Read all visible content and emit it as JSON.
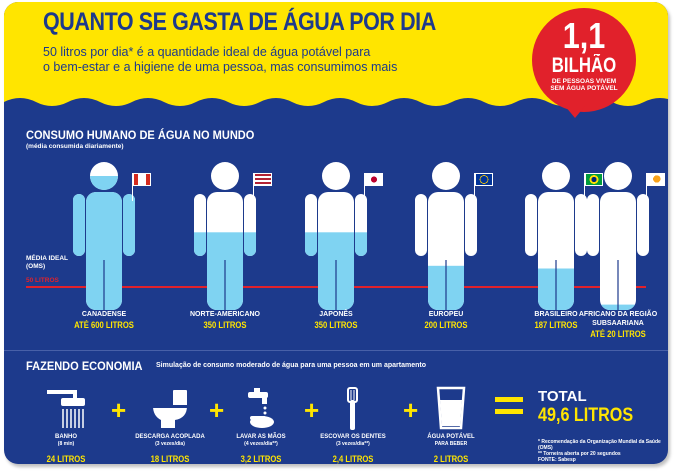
{
  "header": {
    "title": "QUANTO SE GASTA DE ÁGUA POR DIA",
    "intro_line1": "50 litros por dia* é a quantidade ideal de água potável para",
    "intro_line2": "o bem-estar e a higiene de uma pessoa, mas consumimos mais"
  },
  "badge": {
    "number": "1,1",
    "word": "BILHÃO",
    "sub_line1": "DE PESSOAS VIVEM",
    "sub_line2": "SEM ÁGUA POTÁVEL"
  },
  "world": {
    "title": "CONSUMO HUMANO DE ÁGUA NO MUNDO",
    "subtitle": "(média consumida diariamente)",
    "ideal_label_line1": "MÉDIA IDEAL",
    "ideal_label_line2": "(OMS)",
    "ideal_value": "50 LITROS",
    "countries": [
      {
        "name": "CANADENSE",
        "name2": "",
        "value": "ATÉ 600 LITROS",
        "fill": 1.0,
        "flag": "flag-canada-icon"
      },
      {
        "name": "NORTE-AMERICANO",
        "name2": "",
        "value": "350 LITROS",
        "fill": 0.58,
        "flag": "flag-usa-icon"
      },
      {
        "name": "JAPONÊS",
        "name2": "",
        "value": "350 LITROS",
        "fill": 0.58,
        "flag": "flag-japan-icon"
      },
      {
        "name": "EUROPEU",
        "name2": "",
        "value": "200 LITROS",
        "fill": 0.33,
        "flag": "flag-eu-icon"
      },
      {
        "name": "BRASILEIRO",
        "name2": "",
        "value": "187 LITROS",
        "fill": 0.31,
        "flag": "flag-brazil-icon"
      },
      {
        "name": "AFRICANO DA REGIÃO",
        "name2": "SUBSAARIANA",
        "value": "ATÉ 20 LITROS",
        "fill": 0.04,
        "flag": "flag-africa-icon"
      }
    ]
  },
  "economy": {
    "title": "FAZENDO ECONOMIA",
    "description": "Simulação de consumo moderado de água para uma pessoa em um apartamento",
    "items": [
      {
        "name": "BANHO",
        "sub": "(8 min)",
        "value": "24 LITROS",
        "icon": "shower-icon"
      },
      {
        "name": "DESCARGA ACOPLADA",
        "sub": "(3 vezes/dia)",
        "value": "18 LITROS",
        "icon": "toilet-icon"
      },
      {
        "name": "LAVAR AS MÃOS",
        "sub": "(4 vezes/dia**)",
        "value": "3,2 LITROS",
        "icon": "hand-wash-icon"
      },
      {
        "name": "ESCOVAR OS DENTES",
        "sub": "(3 vezes/dia**)",
        "value": "2,4 LITROS",
        "icon": "toothbrush-icon"
      },
      {
        "name": "ÁGUA POTÁVEL",
        "sub": "PARA BEBER",
        "value": "2 LITROS",
        "icon": "glass-icon"
      }
    ],
    "plus": "+",
    "total_label": "TOTAL",
    "total_value": "49,6 LITROS",
    "note1": "* Recomendação da Organização Mundial da Saúde (OMS)",
    "note2": "** Torneira aberta por 20 segundos",
    "note3": "FONTE: Sabesp"
  },
  "colors": {
    "navy": "#1d3a8c",
    "yellow": "#ffe500",
    "red": "#e1212b",
    "water": "#7fd3f2"
  }
}
